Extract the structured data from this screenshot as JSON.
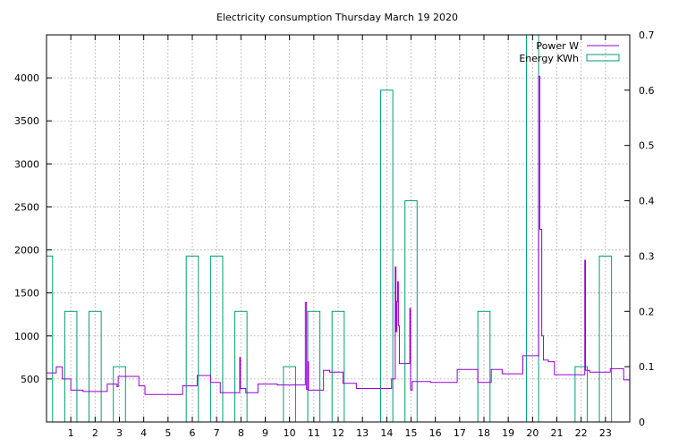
{
  "chart_data": {
    "type": "line",
    "title": "Electricity consumption Thursday March 19 2020",
    "xlabel": "",
    "ylabel": "",
    "y2label": "",
    "xlim": [
      0,
      24
    ],
    "ylim": [
      0,
      4500
    ],
    "y2lim": [
      0,
      0.7
    ],
    "x_ticks": [
      1,
      2,
      3,
      4,
      5,
      6,
      7,
      8,
      9,
      10,
      11,
      12,
      13,
      14,
      15,
      16,
      17,
      18,
      19,
      20,
      21,
      22,
      23
    ],
    "x_tick_labels": [
      "1",
      "2",
      "3",
      "4",
      "5",
      "6",
      "7",
      "8",
      "9",
      "10",
      "11",
      "12",
      "13",
      "14",
      "15",
      "16",
      "17",
      "18",
      "19",
      "20",
      "21",
      "22",
      "23"
    ],
    "y_ticks": [
      500,
      1000,
      1500,
      2000,
      2500,
      3000,
      3500,
      4000
    ],
    "y_tick_labels": [
      "500",
      "1000",
      "1500",
      "2000",
      "2500",
      "3000",
      "3500",
      "4000"
    ],
    "y2_ticks": [
      0,
      0.1,
      0.2,
      0.3,
      0.4,
      0.5,
      0.6,
      0.7
    ],
    "y2_tick_labels": [
      "0",
      "0.1",
      "0.2",
      "0.3",
      "0.4",
      "0.5",
      "0.6",
      "0.7"
    ],
    "grid": true,
    "legend_position": "top-right",
    "series": [
      {
        "name": "Power W",
        "axis": "y",
        "color": "#9400d3",
        "style": "step-line",
        "points": [
          [
            0.0,
            570
          ],
          [
            0.4,
            570
          ],
          [
            0.4,
            640
          ],
          [
            0.65,
            640
          ],
          [
            0.65,
            500
          ],
          [
            1.0,
            500
          ],
          [
            1.0,
            370
          ],
          [
            1.5,
            370
          ],
          [
            1.5,
            355
          ],
          [
            2.5,
            355
          ],
          [
            2.5,
            440
          ],
          [
            2.9,
            440
          ],
          [
            2.9,
            410
          ],
          [
            2.95,
            410
          ],
          [
            2.95,
            530
          ],
          [
            3.8,
            530
          ],
          [
            3.8,
            420
          ],
          [
            4.05,
            420
          ],
          [
            4.05,
            320
          ],
          [
            5.6,
            320
          ],
          [
            5.6,
            420
          ],
          [
            6.2,
            420
          ],
          [
            6.2,
            540
          ],
          [
            6.75,
            540
          ],
          [
            6.75,
            460
          ],
          [
            7.15,
            460
          ],
          [
            7.15,
            340
          ],
          [
            7.95,
            340
          ],
          [
            7.95,
            750
          ],
          [
            7.98,
            750
          ],
          [
            7.98,
            390
          ],
          [
            8.2,
            390
          ],
          [
            8.2,
            340
          ],
          [
            8.7,
            340
          ],
          [
            8.7,
            440
          ],
          [
            9.5,
            440
          ],
          [
            9.5,
            430
          ],
          [
            10.65,
            430
          ],
          [
            10.65,
            1390
          ],
          [
            10.7,
            1390
          ],
          [
            10.7,
            380
          ],
          [
            10.75,
            380
          ],
          [
            10.75,
            700
          ],
          [
            10.78,
            700
          ],
          [
            10.78,
            370
          ],
          [
            11.4,
            370
          ],
          [
            11.4,
            600
          ],
          [
            11.65,
            600
          ],
          [
            11.65,
            580
          ],
          [
            12.2,
            580
          ],
          [
            12.2,
            450
          ],
          [
            12.75,
            450
          ],
          [
            12.75,
            390
          ],
          [
            14.2,
            390
          ],
          [
            14.2,
            500
          ],
          [
            14.35,
            500
          ],
          [
            14.35,
            1800
          ],
          [
            14.38,
            1800
          ],
          [
            14.38,
            1050
          ],
          [
            14.42,
            1050
          ],
          [
            14.42,
            1400
          ],
          [
            14.45,
            1400
          ],
          [
            14.45,
            1630
          ],
          [
            14.48,
            1630
          ],
          [
            14.48,
            1120
          ],
          [
            14.52,
            1120
          ],
          [
            14.52,
            680
          ],
          [
            14.95,
            680
          ],
          [
            14.95,
            1320
          ],
          [
            14.98,
            1320
          ],
          [
            14.98,
            370
          ],
          [
            15.05,
            370
          ],
          [
            15.05,
            470
          ],
          [
            15.8,
            470
          ],
          [
            15.8,
            460
          ],
          [
            16.9,
            460
          ],
          [
            16.9,
            610
          ],
          [
            17.75,
            610
          ],
          [
            17.75,
            460
          ],
          [
            18.3,
            460
          ],
          [
            18.3,
            610
          ],
          [
            18.75,
            610
          ],
          [
            18.75,
            560
          ],
          [
            19.6,
            560
          ],
          [
            19.6,
            770
          ],
          [
            20.25,
            770
          ],
          [
            20.25,
            4020
          ],
          [
            20.3,
            4020
          ],
          [
            20.3,
            2240
          ],
          [
            20.38,
            2240
          ],
          [
            20.38,
            1000
          ],
          [
            20.45,
            1000
          ],
          [
            20.45,
            720
          ],
          [
            20.65,
            720
          ],
          [
            20.65,
            700
          ],
          [
            20.9,
            700
          ],
          [
            20.9,
            550
          ],
          [
            22.15,
            550
          ],
          [
            22.15,
            1880
          ],
          [
            22.18,
            1880
          ],
          [
            22.18,
            600
          ],
          [
            22.35,
            600
          ],
          [
            22.35,
            580
          ],
          [
            23.2,
            580
          ],
          [
            23.2,
            620
          ],
          [
            23.75,
            620
          ],
          [
            23.75,
            490
          ],
          [
            24.0,
            490
          ]
        ]
      },
      {
        "name": "Energy KWh",
        "axis": "y2",
        "color": "#009e73",
        "style": "boxes",
        "bar_width": 0.5,
        "x": [
          0,
          1,
          2,
          3,
          4,
          5,
          6,
          7,
          8,
          9,
          10,
          11,
          12,
          13,
          14,
          15,
          16,
          17,
          18,
          19,
          20,
          21,
          22,
          23
        ],
        "values": [
          0.3,
          0.2,
          0.2,
          0.1,
          0,
          0,
          0.3,
          0.3,
          0.2,
          0,
          0.1,
          0.2,
          0.2,
          0,
          0.6,
          0.4,
          0,
          0,
          0.2,
          0,
          0.7,
          0,
          0.1,
          0.3
        ]
      }
    ]
  }
}
